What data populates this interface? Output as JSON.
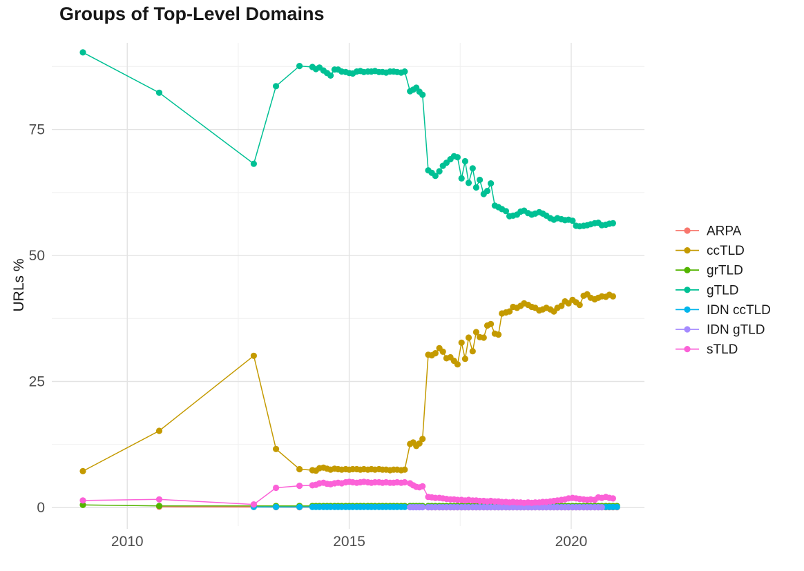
{
  "chart_data": {
    "type": "line",
    "title": "Groups of Top-Level Domains",
    "xlabel": "",
    "ylabel": "URLs %",
    "legend_position": "right",
    "grid": true,
    "xlim": [
      2008.3,
      2021.65
    ],
    "ylim": [
      -3.7,
      92.2
    ],
    "x_breaks": [
      2010,
      2015,
      2020
    ],
    "x_tick_labels": [
      "2010",
      "2015",
      "2020"
    ],
    "y_breaks": [
      0,
      25,
      50,
      75
    ],
    "y_tick_labels": [
      "0",
      "25",
      "50",
      "75"
    ],
    "x_minor_breaks": [
      2012.5,
      2017.5
    ],
    "y_minor_breaks": [
      12.5,
      37.5,
      62.5,
      87.5
    ],
    "style": {
      "background": "#ffffff",
      "grid_major": "#e3e3e3",
      "grid_minor": "#f1f1f1",
      "tick_label_color": "#4d4d4d",
      "text_color": "#1a1a1a"
    },
    "x": [
      2009,
      2010.72,
      2012.85,
      2013.35,
      2013.88,
      2014.17,
      2014.25,
      2014.33,
      2014.42,
      2014.5,
      2014.58,
      2014.67,
      2014.75,
      2014.83,
      2014.92,
      2015,
      2015.08,
      2015.17,
      2015.25,
      2015.33,
      2015.42,
      2015.5,
      2015.58,
      2015.67,
      2015.75,
      2015.83,
      2015.92,
      2016,
      2016.08,
      2016.17,
      2016.25,
      2016.37,
      2016.44,
      2016.51,
      2016.58,
      2016.65,
      2016.78,
      2016.86,
      2016.94,
      2017.03,
      2017.11,
      2017.19,
      2017.28,
      2017.36,
      2017.44,
      2017.53,
      2017.61,
      2017.69,
      2017.78,
      2017.86,
      2017.94,
      2018.03,
      2018.11,
      2018.19,
      2018.28,
      2018.36,
      2018.44,
      2018.53,
      2018.61,
      2018.69,
      2018.78,
      2018.86,
      2018.94,
      2019.03,
      2019.11,
      2019.19,
      2019.28,
      2019.36,
      2019.44,
      2019.53,
      2019.61,
      2019.69,
      2019.78,
      2019.86,
      2019.94,
      2020.03,
      2020.11,
      2020.19,
      2020.28,
      2020.36,
      2020.44,
      2020.53,
      2020.61,
      2020.69,
      2020.78,
      2020.86,
      2020.94,
      2021.03
    ],
    "series": [
      {
        "name": "ARPA",
        "color": "#F8766D",
        "x": [
          2010.72,
          2012.85,
          2013.35,
          2013.88,
          2016.78,
          2016.86,
          2016.94,
          2017.03,
          2017.11,
          2017.19,
          2017.28,
          2017.36,
          2017.44,
          2017.53,
          2017.61,
          2017.69,
          2017.78,
          2017.86,
          2017.94,
          2018.03,
          2018.11,
          2018.19,
          2018.28,
          2018.36,
          2018.44,
          2018.53,
          2018.61,
          2018.69,
          2018.78,
          2018.86,
          2018.94,
          2019.03,
          2019.11,
          2019.19,
          2019.28,
          2019.36,
          2019.44,
          2019.53,
          2019.61,
          2019.69,
          2019.78,
          2019.86,
          2019.94,
          2020.03,
          2020.11,
          2020.19,
          2020.28,
          2020.36,
          2020.44,
          2020.53,
          2020.61,
          2020.69,
          2020.78,
          2020.86,
          2020.94,
          2021.03
        ],
        "y": [
          0.15,
          0.1,
          0.07,
          0.05,
          0.04,
          0.04,
          0.04,
          0.04,
          0.04,
          0.04,
          0.04,
          0.04,
          0.04,
          0.04,
          0.04,
          0.04,
          0.04,
          0.04,
          0.04,
          0.04,
          0.04,
          0.04,
          0.04,
          0.04,
          0.04,
          0.04,
          0.04,
          0.04,
          0.04,
          0.04,
          0.04,
          0.04,
          0.04,
          0.04,
          0.04,
          0.04,
          0.04,
          0.04,
          0.04,
          0.04,
          0.04,
          0.04,
          0.04,
          0.04,
          0.04,
          0.04,
          0.04,
          0.04,
          0.04,
          0.04,
          0.04,
          0.04,
          0.04,
          0.04,
          0.04,
          0.04
        ]
      },
      {
        "name": "ccTLD",
        "color": "#C49A00",
        "x_offset": 0,
        "y": [
          7.2,
          15.2,
          30.1,
          11.6,
          7.6,
          7.4,
          7.3,
          7.8,
          7.9,
          7.7,
          7.5,
          7.7,
          7.6,
          7.5,
          7.6,
          7.5,
          7.6,
          7.6,
          7.5,
          7.6,
          7.5,
          7.6,
          7.5,
          7.6,
          7.5,
          7.5,
          7.4,
          7.5,
          7.5,
          7.4,
          7.5,
          12.6,
          12.9,
          12.2,
          12.7,
          13.6,
          30.3,
          30.2,
          30.6,
          31.6,
          30.9,
          29.6,
          29.8,
          29.1,
          28.4,
          32.7,
          29.5,
          33.7,
          31,
          34.8,
          33.8,
          33.7,
          36.1,
          36.4,
          34.5,
          34.3,
          38.5,
          38.7,
          38.9,
          39.8,
          39.6,
          40,
          40.5,
          40.2,
          39.8,
          39.6,
          39.1,
          39.3,
          39.6,
          39.3,
          38.9,
          39.6,
          40,
          40.9,
          40.5,
          41.2,
          40.7,
          40.2,
          42,
          42.3,
          41.6,
          41.3,
          41.6,
          41.9,
          41.8,
          42.2,
          41.9
        ]
      },
      {
        "name": "grTLD",
        "color": "#53B400",
        "x_offset": 0,
        "y": [
          0.5,
          0.3,
          0.3,
          0.3,
          0.3,
          0.3,
          0.3,
          0.3,
          0.3,
          0.3,
          0.3,
          0.3,
          0.3,
          0.3,
          0.3,
          0.3,
          0.3,
          0.3,
          0.3,
          0.3,
          0.3,
          0.3,
          0.3,
          0.3,
          0.3,
          0.3,
          0.3,
          0.3,
          0.3,
          0.3,
          0.3,
          0.3,
          0.3,
          0.3,
          0.3,
          0.3,
          0.3,
          0.3,
          0.3,
          0.3,
          0.3,
          0.3,
          0.3,
          0.3,
          0.3,
          0.3,
          0.3,
          0.3,
          0.3,
          0.3,
          0.3,
          0.3,
          0.3,
          0.3,
          0.3,
          0.3,
          0.3,
          0.3,
          0.3,
          0.3,
          0.3,
          0.3,
          0.3,
          0.3,
          0.3,
          0.3,
          0.3,
          0.3,
          0.3,
          0.3,
          0.3,
          0.3,
          0.3,
          0.3,
          0.3,
          0.3,
          0.3,
          0.3,
          0.3,
          0.3,
          0.3,
          0.3,
          0.3,
          0.3,
          0.3,
          0.3,
          0.3,
          0.3
        ]
      },
      {
        "name": "gTLD",
        "color": "#00C094",
        "x_offset": 0,
        "y": [
          90.3,
          82.3,
          68.2,
          83.6,
          87.6,
          87.4,
          87,
          87.3,
          86.7,
          86.2,
          85.7,
          86.9,
          86.9,
          86.5,
          86.4,
          86.2,
          86.1,
          86.5,
          86.6,
          86.4,
          86.5,
          86.5,
          86.6,
          86.4,
          86.4,
          86.3,
          86.5,
          86.5,
          86.4,
          86.3,
          86.5,
          82.6,
          82.9,
          83.3,
          82.5,
          81.9,
          66.9,
          66.4,
          65.8,
          66.7,
          67.8,
          68.4,
          69.1,
          69.7,
          69.5,
          65.3,
          68.7,
          64.4,
          67.3,
          63.5,
          65,
          62.2,
          62.8,
          64.3,
          59.9,
          59.6,
          59.2,
          58.8,
          57.8,
          57.9,
          58.1,
          58.7,
          58.9,
          58.4,
          58.1,
          58.3,
          58.6,
          58.3,
          57.9,
          57.4,
          57.1,
          57.4,
          57.2,
          57,
          57.1,
          56.9,
          55.9,
          55.8,
          55.9,
          56,
          56.2,
          56.4,
          56.5,
          56,
          56.1,
          56.3,
          56.4
        ]
      },
      {
        "name": "IDN ccTLD",
        "color": "#00B6EB",
        "x_offset": 2,
        "y": [
          0.12,
          0.1,
          0.1,
          0.1,
          0.1,
          0.1,
          0.1,
          0.1,
          0.1,
          0.1,
          0.1,
          0.1,
          0.1,
          0.1,
          0.1,
          0.1,
          0.1,
          0.1,
          0.1,
          0.1,
          0.1,
          0.1,
          0.1,
          0.1,
          0.1,
          0.1,
          0.1,
          0.1,
          0.1,
          0.1,
          0.1,
          0.1,
          0.1,
          0.1,
          0.1,
          0.1,
          0.1,
          0.1,
          0.1,
          0.1,
          0.1,
          0.1,
          0.1,
          0.1,
          0.1,
          0.1,
          0.1,
          0.1,
          0.1,
          0.1,
          0.1,
          0.1,
          0.1,
          0.1,
          0.1,
          0.1,
          0.1,
          0.1,
          0.1,
          0.1,
          0.1,
          0.1,
          0.1,
          0.1,
          0.1,
          0.1,
          0.1,
          0.1,
          0.1,
          0.1,
          0.1,
          0.1,
          0.1,
          0.1,
          0.1,
          0.1,
          0.1,
          0.1,
          0.1,
          0.1,
          0.1,
          0.1,
          0.1,
          0.1,
          0.1,
          0.1
        ]
      },
      {
        "name": "IDN gTLD",
        "color": "#A58AFF",
        "x_offset": 31,
        "y": [
          0.05,
          0.05,
          0.05,
          0.05,
          0.05,
          0.05,
          0.05,
          0.05,
          0.05,
          0.05,
          0.05,
          0.05,
          0.05,
          0.05,
          0.05,
          0.05,
          0.05,
          0.05,
          0.05,
          0.05,
          0.05,
          0.05,
          0.05,
          0.05,
          0.05,
          0.05,
          0.05,
          0.05,
          0.05,
          0.05,
          0.05,
          0.05,
          0.05,
          0.05,
          0.05,
          0.05,
          0.05,
          0.05,
          0.05,
          0.05,
          0.05,
          0.05,
          0.05,
          0.05,
          0.05,
          0.05,
          0.05,
          0.05,
          0.05,
          0.05,
          0.05,
          0.05,
          0.05
        ]
      },
      {
        "name": "sTLD",
        "color": "#FB61D7",
        "x_offset": 0,
        "y": [
          1.4,
          1.6,
          0.6,
          3.9,
          4.3,
          4.4,
          4.5,
          4.8,
          4.9,
          4.7,
          4.6,
          4.8,
          4.9,
          4.8,
          5,
          5.1,
          5,
          4.9,
          5,
          5.1,
          5,
          4.9,
          5,
          5,
          4.9,
          5,
          4.9,
          4.9,
          5,
          4.9,
          5,
          4.8,
          4.4,
          4.1,
          4,
          4.2,
          2.1,
          2,
          1.9,
          1.9,
          1.8,
          1.7,
          1.6,
          1.6,
          1.5,
          1.5,
          1.4,
          1.5,
          1.4,
          1.4,
          1.3,
          1.3,
          1.2,
          1.3,
          1.2,
          1.2,
          1.1,
          1.1,
          1,
          1.1,
          1,
          1,
          0.9,
          1,
          0.9,
          1,
          1,
          1.1,
          1.1,
          1.2,
          1.3,
          1.4,
          1.5,
          1.6,
          1.8,
          1.9,
          1.8,
          1.7,
          1.6,
          1.5,
          1.6,
          1.5,
          2,
          1.9,
          2.1,
          1.9,
          1.8
        ]
      }
    ]
  }
}
